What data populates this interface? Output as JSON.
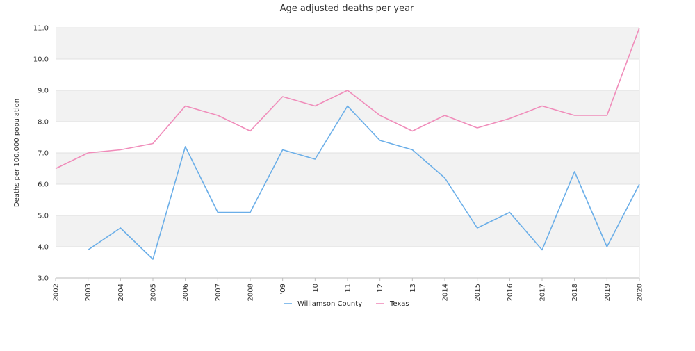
{
  "chart_data": {
    "type": "line",
    "title": "Age adjusted deaths per year",
    "xlabel": "",
    "ylabel": "Deaths per 100,000 population",
    "x": [
      "2002",
      "2003",
      "2004",
      "2005",
      "2006",
      "2007",
      "2008",
      "2009",
      "2010",
      "2011",
      "2012",
      "2013",
      "2014",
      "2015",
      "2016",
      "2017",
      "2018",
      "2019",
      "2020"
    ],
    "x_tick_labels": [
      "2002",
      "2003",
      "2004",
      "2005",
      "2006",
      "2007",
      "2008",
      "'09",
      "10",
      "11",
      "12",
      "13",
      "2014",
      "2015",
      "2016",
      "2017",
      "2018",
      "2019",
      "2020"
    ],
    "ylim": [
      3.0,
      11.0
    ],
    "y_ticks": [
      "3.0",
      "4.0",
      "5.0",
      "6.0",
      "7.0",
      "8.0",
      "9.0",
      "10.0",
      "11.0"
    ],
    "grid": true,
    "legend_position": "bottom",
    "series": [
      {
        "name": "Williamson County",
        "color": "#6aaee8",
        "values": [
          null,
          3.9,
          4.6,
          3.6,
          7.2,
          5.1,
          5.1,
          7.1,
          6.8,
          8.5,
          7.4,
          7.1,
          6.2,
          4.6,
          5.1,
          3.9,
          6.4,
          4.0,
          6.0
        ]
      },
      {
        "name": "Texas",
        "color": "#f08cba",
        "values": [
          6.5,
          7.0,
          7.1,
          7.3,
          8.5,
          8.2,
          7.7,
          8.8,
          8.5,
          9.0,
          8.2,
          7.7,
          8.2,
          7.8,
          8.1,
          8.5,
          8.2,
          8.2,
          11.0
        ]
      }
    ]
  }
}
